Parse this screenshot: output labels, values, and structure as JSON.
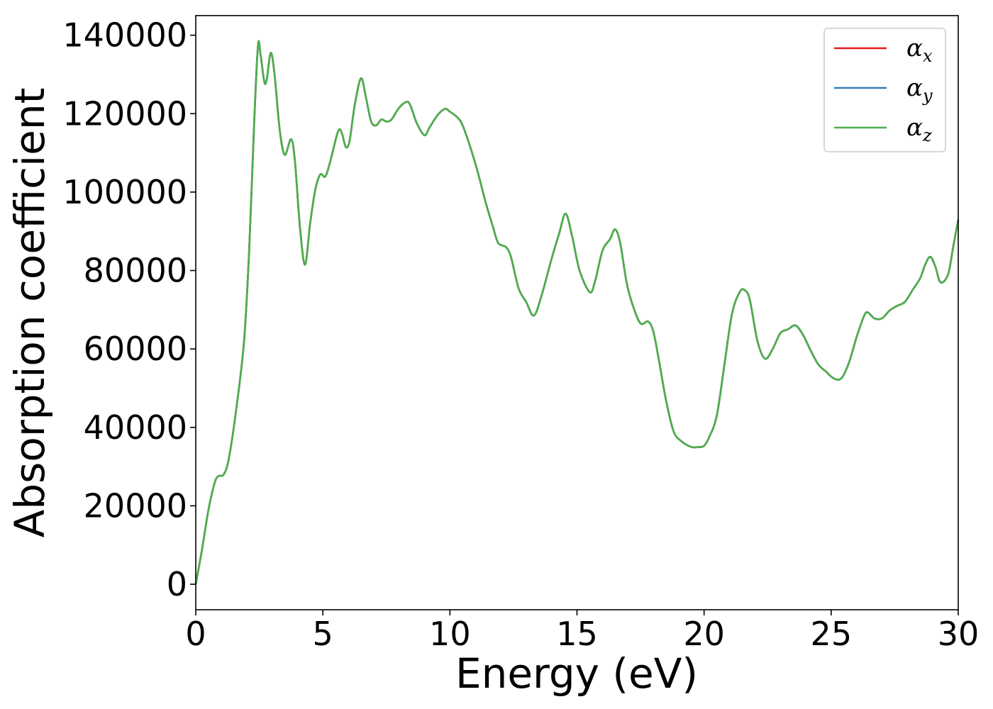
{
  "chart_data": {
    "type": "line",
    "xlabel": "Energy (eV)",
    "ylabel": "Absorption coefficient",
    "xlim": [
      0,
      30
    ],
    "ylim": [
      -6500,
      145000
    ],
    "x_ticks": [
      0,
      5,
      10,
      15,
      20,
      25,
      30
    ],
    "y_ticks": [
      0,
      20000,
      40000,
      60000,
      80000,
      100000,
      120000,
      140000
    ],
    "grid": false,
    "legend_position": "top-right",
    "x": [
      0.0,
      0.25,
      0.5,
      0.75,
      0.9,
      1.1,
      1.3,
      1.6,
      1.9,
      2.1,
      2.3,
      2.45,
      2.55,
      2.7,
      2.8,
      2.95,
      3.1,
      3.3,
      3.5,
      3.75,
      3.9,
      4.1,
      4.3,
      4.5,
      4.7,
      4.9,
      5.1,
      5.3,
      5.6,
      5.75,
      5.9,
      6.05,
      6.25,
      6.5,
      6.7,
      6.9,
      7.1,
      7.3,
      7.5,
      7.7,
      8.0,
      8.3,
      8.45,
      8.7,
      9.0,
      9.2,
      9.5,
      9.8,
      10.0,
      10.3,
      10.5,
      10.8,
      11.1,
      11.4,
      11.7,
      11.9,
      12.2,
      12.4,
      12.7,
      13.0,
      13.3,
      13.6,
      14.0,
      14.3,
      14.55,
      14.8,
      15.1,
      15.5,
      15.7,
      16.0,
      16.3,
      16.5,
      16.7,
      16.95,
      17.2,
      17.5,
      17.8,
      18.0,
      18.2,
      18.5,
      18.8,
      19.1,
      19.5,
      19.8,
      20.0,
      20.2,
      20.5,
      20.8,
      21.1,
      21.4,
      21.6,
      21.8,
      22.1,
      22.4,
      22.7,
      23.0,
      23.3,
      23.6,
      23.9,
      24.2,
      24.5,
      24.8,
      25.1,
      25.4,
      25.7,
      26.0,
      26.3,
      26.45,
      26.7,
      27.0,
      27.3,
      27.6,
      27.9,
      28.2,
      28.5,
      28.7,
      28.9,
      29.1,
      29.3,
      29.6,
      29.8,
      30.0
    ],
    "series": [
      {
        "name": "α_x",
        "color": "#e41a1c",
        "values": [
          0,
          9000,
          19000,
          26000,
          27600,
          28000,
          32000,
          45000,
          62000,
          85000,
          118000,
          137500,
          135000,
          128000,
          129000,
          135500,
          130000,
          116000,
          109500,
          113500,
          108000,
          91000,
          81500,
          92000,
          100500,
          104500,
          104000,
          108000,
          115500,
          115000,
          111500,
          113000,
          122000,
          129000,
          124000,
          118000,
          117000,
          118500,
          118000,
          118500,
          121500,
          123000,
          122000,
          117500,
          114500,
          116500,
          119500,
          121200,
          120500,
          119000,
          117000,
          111500,
          105000,
          97500,
          91000,
          87000,
          86000,
          83500,
          75500,
          72000,
          68500,
          73500,
          83000,
          89500,
          94500,
          89000,
          80000,
          74500,
          77000,
          85000,
          88000,
          90500,
          87000,
          77000,
          71000,
          66500,
          67000,
          64500,
          58000,
          47000,
          39000,
          36500,
          35000,
          35000,
          35300,
          37500,
          43000,
          56000,
          69000,
          74500,
          75000,
          72500,
          62000,
          57500,
          60000,
          64000,
          65000,
          66000,
          63500,
          59500,
          56000,
          54200,
          52500,
          52500,
          56500,
          63000,
          68500,
          69300,
          67800,
          67800,
          69800,
          71000,
          72000,
          75000,
          78000,
          81500,
          83500,
          81000,
          77000,
          79000,
          86000,
          93000
        ]
      },
      {
        "name": "α_y",
        "color": "#377eb8",
        "values": [
          0,
          9000,
          19000,
          26000,
          27600,
          28000,
          32000,
          45000,
          62000,
          85000,
          118000,
          137500,
          135000,
          128000,
          129000,
          135500,
          130000,
          116000,
          109500,
          113500,
          108000,
          91000,
          81500,
          92000,
          100500,
          104500,
          104000,
          108000,
          115500,
          115000,
          111500,
          113000,
          122000,
          129000,
          124000,
          118000,
          117000,
          118500,
          118000,
          118500,
          121500,
          123000,
          122000,
          117500,
          114500,
          116500,
          119500,
          121200,
          120500,
          119000,
          117000,
          111500,
          105000,
          97500,
          91000,
          87000,
          86000,
          83500,
          75500,
          72000,
          68500,
          73500,
          83000,
          89500,
          94500,
          89000,
          80000,
          74500,
          77000,
          85000,
          88000,
          90500,
          87000,
          77000,
          71000,
          66500,
          67000,
          64500,
          58000,
          47000,
          39000,
          36500,
          35000,
          35000,
          35300,
          37500,
          43000,
          56000,
          69000,
          74500,
          75000,
          72500,
          62000,
          57500,
          60000,
          64000,
          65000,
          66000,
          63500,
          59500,
          56000,
          54200,
          52500,
          52500,
          56500,
          63000,
          68500,
          69300,
          67800,
          67800,
          69800,
          71000,
          72000,
          75000,
          78000,
          81500,
          83500,
          81000,
          77000,
          79000,
          86000,
          93000
        ]
      },
      {
        "name": "α_z",
        "color": "#4daf4a",
        "values": [
          0,
          9000,
          19000,
          26000,
          27600,
          28000,
          32000,
          45000,
          62000,
          85000,
          118000,
          137500,
          135000,
          128000,
          129000,
          135500,
          130000,
          116000,
          109500,
          113500,
          108000,
          91000,
          81500,
          92000,
          100500,
          104500,
          104000,
          108000,
          115500,
          115000,
          111500,
          113000,
          122000,
          129000,
          124000,
          118000,
          117000,
          118500,
          118000,
          118500,
          121500,
          123000,
          122000,
          117500,
          114500,
          116500,
          119500,
          121200,
          120500,
          119000,
          117000,
          111500,
          105000,
          97500,
          91000,
          87000,
          86000,
          83500,
          75500,
          72000,
          68500,
          73500,
          83000,
          89500,
          94500,
          89000,
          80000,
          74500,
          77000,
          85000,
          88000,
          90500,
          87000,
          77000,
          71000,
          66500,
          67000,
          64500,
          58000,
          47000,
          39000,
          36500,
          35000,
          35000,
          35300,
          37500,
          43000,
          56000,
          69000,
          74500,
          75000,
          72500,
          62000,
          57500,
          60000,
          64000,
          65000,
          66000,
          63500,
          59500,
          56000,
          54200,
          52500,
          52500,
          56500,
          63000,
          68500,
          69300,
          67800,
          67800,
          69800,
          71000,
          72000,
          75000,
          78000,
          81500,
          83500,
          81000,
          77000,
          79000,
          86000,
          93000
        ]
      }
    ],
    "legend": [
      {
        "symbol": "α",
        "sub": "x"
      },
      {
        "symbol": "α",
        "sub": "y"
      },
      {
        "symbol": "α",
        "sub": "z"
      }
    ]
  }
}
